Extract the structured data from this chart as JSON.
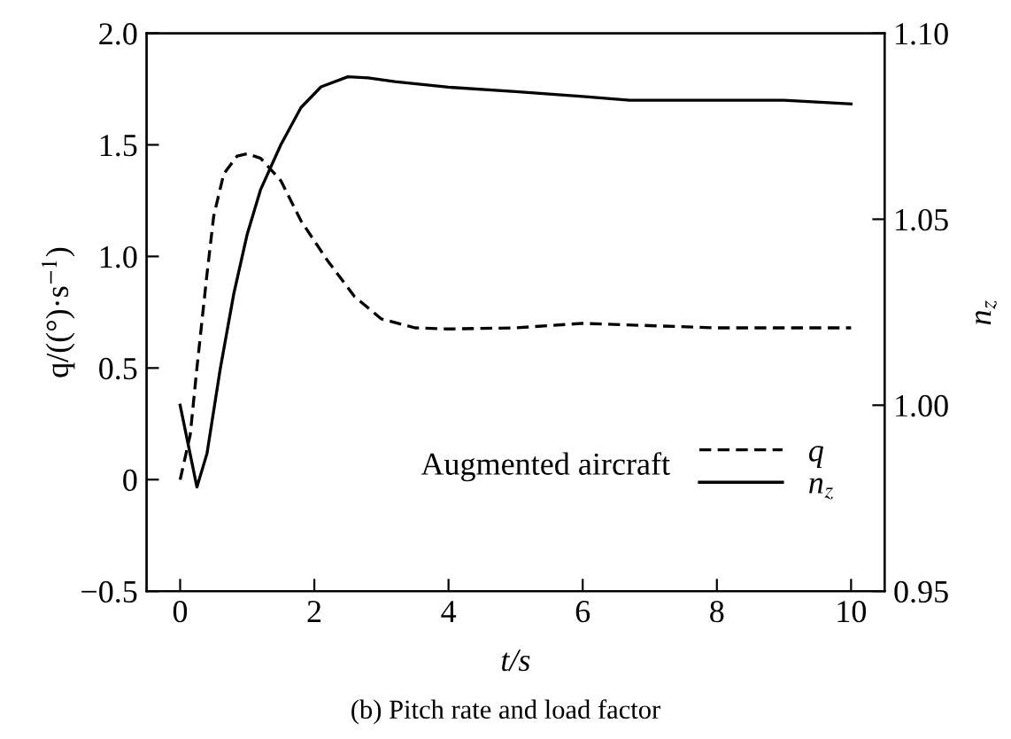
{
  "chart_data": {
    "type": "line",
    "title": "(b) Pitch rate and load factor",
    "xlabel": "t/s",
    "ylabel": "q/((°)·s$^{−1}$)",
    "y2label": "n$_{z}$",
    "legend_title": "Augmented aircraft",
    "legend": "bottom right",
    "xlim": [
      -0.5,
      10.5
    ],
    "xticks": [
      0,
      2,
      4,
      6,
      8,
      10
    ],
    "ylim": [
      -0.5,
      2.0
    ],
    "yticks": [
      {
        "value": -0.5,
        "label": "−0.5"
      },
      0,
      0.5,
      {
        "value": 1,
        "label": "1.0"
      },
      1.5,
      {
        "value": 2,
        "label": "2.0"
      }
    ],
    "y2lim": [
      0.95,
      1.1
    ],
    "y2ticks": [
      0.95,
      {
        "value": 1,
        "label": "1.00"
      },
      1.05,
      {
        "value": 1.1,
        "label": "1.10"
      }
    ],
    "grid": false,
    "marker": "none",
    "series": [
      {
        "name": "q",
        "color": "#000000",
        "line_style": "dashed",
        "x": [
          0,
          0.15,
          0.25,
          0.4,
          0.5,
          0.65,
          0.85,
          1.0,
          1.2,
          1.5,
          1.8,
          2.2,
          2.6,
          3.0,
          3.5,
          4,
          5,
          6,
          7,
          8,
          10
        ],
        "values": [
          0,
          0.2,
          0.5,
          0.92,
          1.18,
          1.37,
          1.45,
          1.46,
          1.44,
          1.34,
          1.16,
          0.98,
          0.82,
          0.72,
          0.68,
          0.675,
          0.68,
          0.7,
          0.69,
          0.68,
          0.68
        ]
      },
      {
        "name": "n$_{z}$",
        "color": "#000000",
        "line_style": "solid",
        "axis": "y2",
        "x": [
          0,
          0.25,
          0.4,
          0.6,
          0.8,
          1.0,
          1.2,
          1.5,
          1.8,
          2.1,
          2.5,
          2.8,
          3.2,
          4,
          5,
          6,
          6.7,
          8,
          9,
          10
        ],
        "values": [
          1.0,
          0.978,
          0.987,
          1.01,
          1.03,
          1.046,
          1.058,
          1.07,
          1.08,
          1.0856,
          1.0883,
          1.088,
          1.087,
          1.0855,
          1.0843,
          1.083,
          1.082,
          1.082,
          1.082,
          1.081
        ]
      }
    ]
  }
}
